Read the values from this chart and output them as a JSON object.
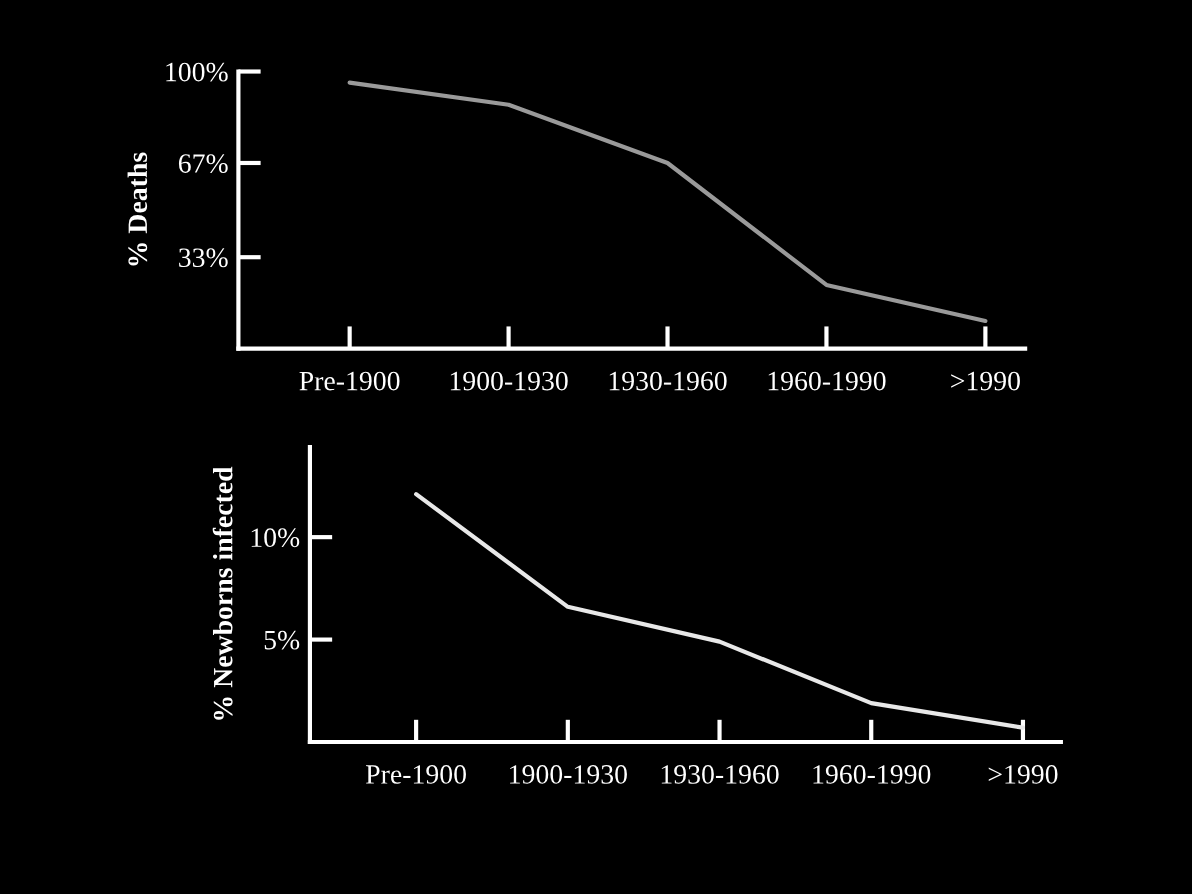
{
  "chart_data": [
    {
      "type": "line",
      "ylabel": "% Deaths",
      "categories": [
        "Pre-1900",
        "1900-1930",
        "1930-1960",
        "1960-1990",
        ">1990"
      ],
      "series": [
        {
          "color": "#9a9a9a",
          "values": [
            96,
            88,
            67,
            23,
            10
          ]
        }
      ],
      "ylim": [
        0,
        100
      ],
      "yticks": [
        {
          "value": 33,
          "label": "33%"
        },
        {
          "value": 67,
          "label": "67%"
        },
        {
          "value": 100,
          "label": "100%"
        }
      ],
      "grid": false,
      "legend": false
    },
    {
      "type": "line",
      "ylabel": "% Newborns infected",
      "categories": [
        "Pre-1900",
        "1900-1930",
        "1930-1960",
        "1960-1990",
        ">1990"
      ],
      "series": [
        {
          "color": "#e8e8e8",
          "values": [
            12.1,
            6.6,
            4.9,
            1.9,
            0.7
          ]
        }
      ],
      "ylim": [
        0,
        14.4
      ],
      "yticks": [
        {
          "value": 5,
          "label": "5%"
        },
        {
          "value": 10,
          "label": "10%"
        }
      ],
      "grid": false,
      "legend": false
    }
  ]
}
